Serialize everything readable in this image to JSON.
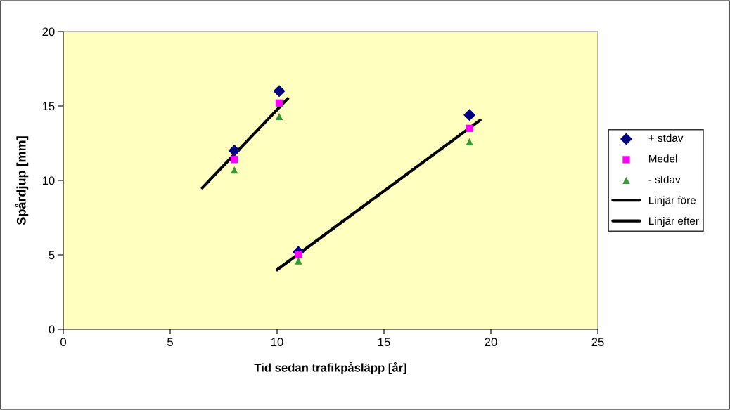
{
  "chart_data": {
    "type": "scatter",
    "xlabel": "Tid sedan trafikpåsläpp [år]",
    "ylabel": "Spårdjup [mm]",
    "xlim": [
      0,
      25
    ],
    "xticks": [
      0,
      5,
      10,
      15,
      20,
      25
    ],
    "ylim": [
      0,
      20
    ],
    "yticks": [
      0,
      5,
      10,
      15,
      20
    ],
    "grid": false,
    "legend": "right",
    "series": [
      {
        "name": "+ stdav",
        "marker": "diamond",
        "color": "#000080",
        "x": [
          8,
          10.1,
          11,
          19
        ],
        "values": [
          12,
          16,
          5.2,
          14.4
        ]
      },
      {
        "name": "Medel",
        "marker": "square",
        "color": "#ff00ff",
        "x": [
          8,
          10.1,
          11,
          19
        ],
        "values": [
          11.4,
          15.2,
          5,
          13.5
        ]
      },
      {
        "name": "- stdav",
        "marker": "triangle",
        "color": "#339933",
        "x": [
          8,
          10.1,
          11,
          19
        ],
        "values": [
          10.7,
          14.3,
          4.6,
          12.6
        ]
      },
      {
        "name": "Linjär före",
        "type": "line",
        "marker": "none",
        "line_style": "solid",
        "color": "#000000",
        "x": [
          6.5,
          10.5
        ],
        "values": [
          9.5,
          15.5
        ]
      },
      {
        "name": "Linjär efter",
        "type": "line",
        "marker": "none",
        "line_style": "solid",
        "color": "#000000",
        "x": [
          10,
          19.5
        ],
        "values": [
          4,
          14.05
        ]
      }
    ]
  }
}
